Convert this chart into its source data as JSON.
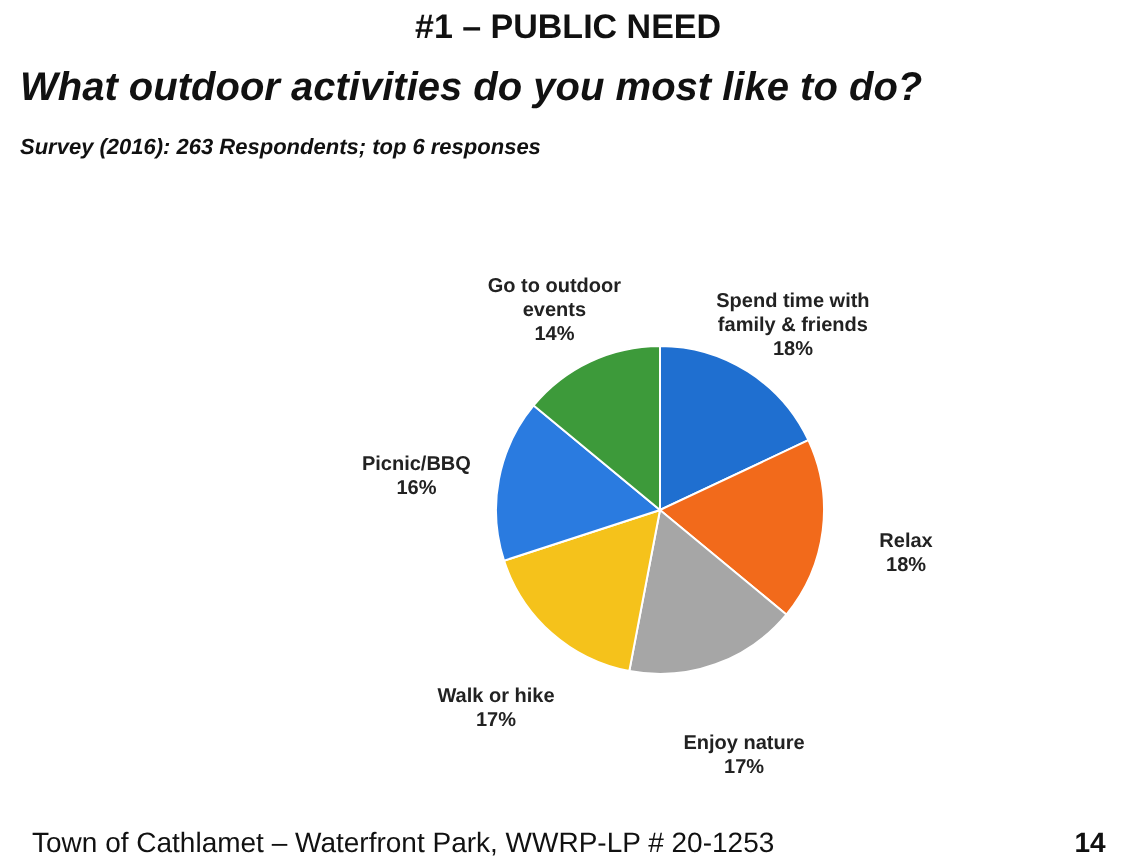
{
  "chart_data": {
    "type": "pie",
    "title": "#1 – PUBLIC NEED",
    "subtitle": "What outdoor activities do you most like to do?",
    "categories": [
      "Spend time with family & friends",
      "Relax",
      "Enjoy nature",
      "Walk or hike",
      "Picnic/BBQ",
      "Go to outdoor events"
    ],
    "values": [
      18,
      18,
      17,
      17,
      16,
      14
    ],
    "colors": [
      "#1f6fd0",
      "#f26a1b",
      "#a6a6a6",
      "#f5c21b",
      "#2a7be0",
      "#3d9a3a"
    ],
    "value_labels": [
      "18%",
      "18%",
      "17%",
      "17%",
      "16%",
      "14%"
    ],
    "annotations": [
      "Survey (2016): 263 Respondents; top 6 responses",
      "Town of Cathlamet – Waterfront Park, WWRP-LP # 20-1253",
      "14"
    ]
  }
}
